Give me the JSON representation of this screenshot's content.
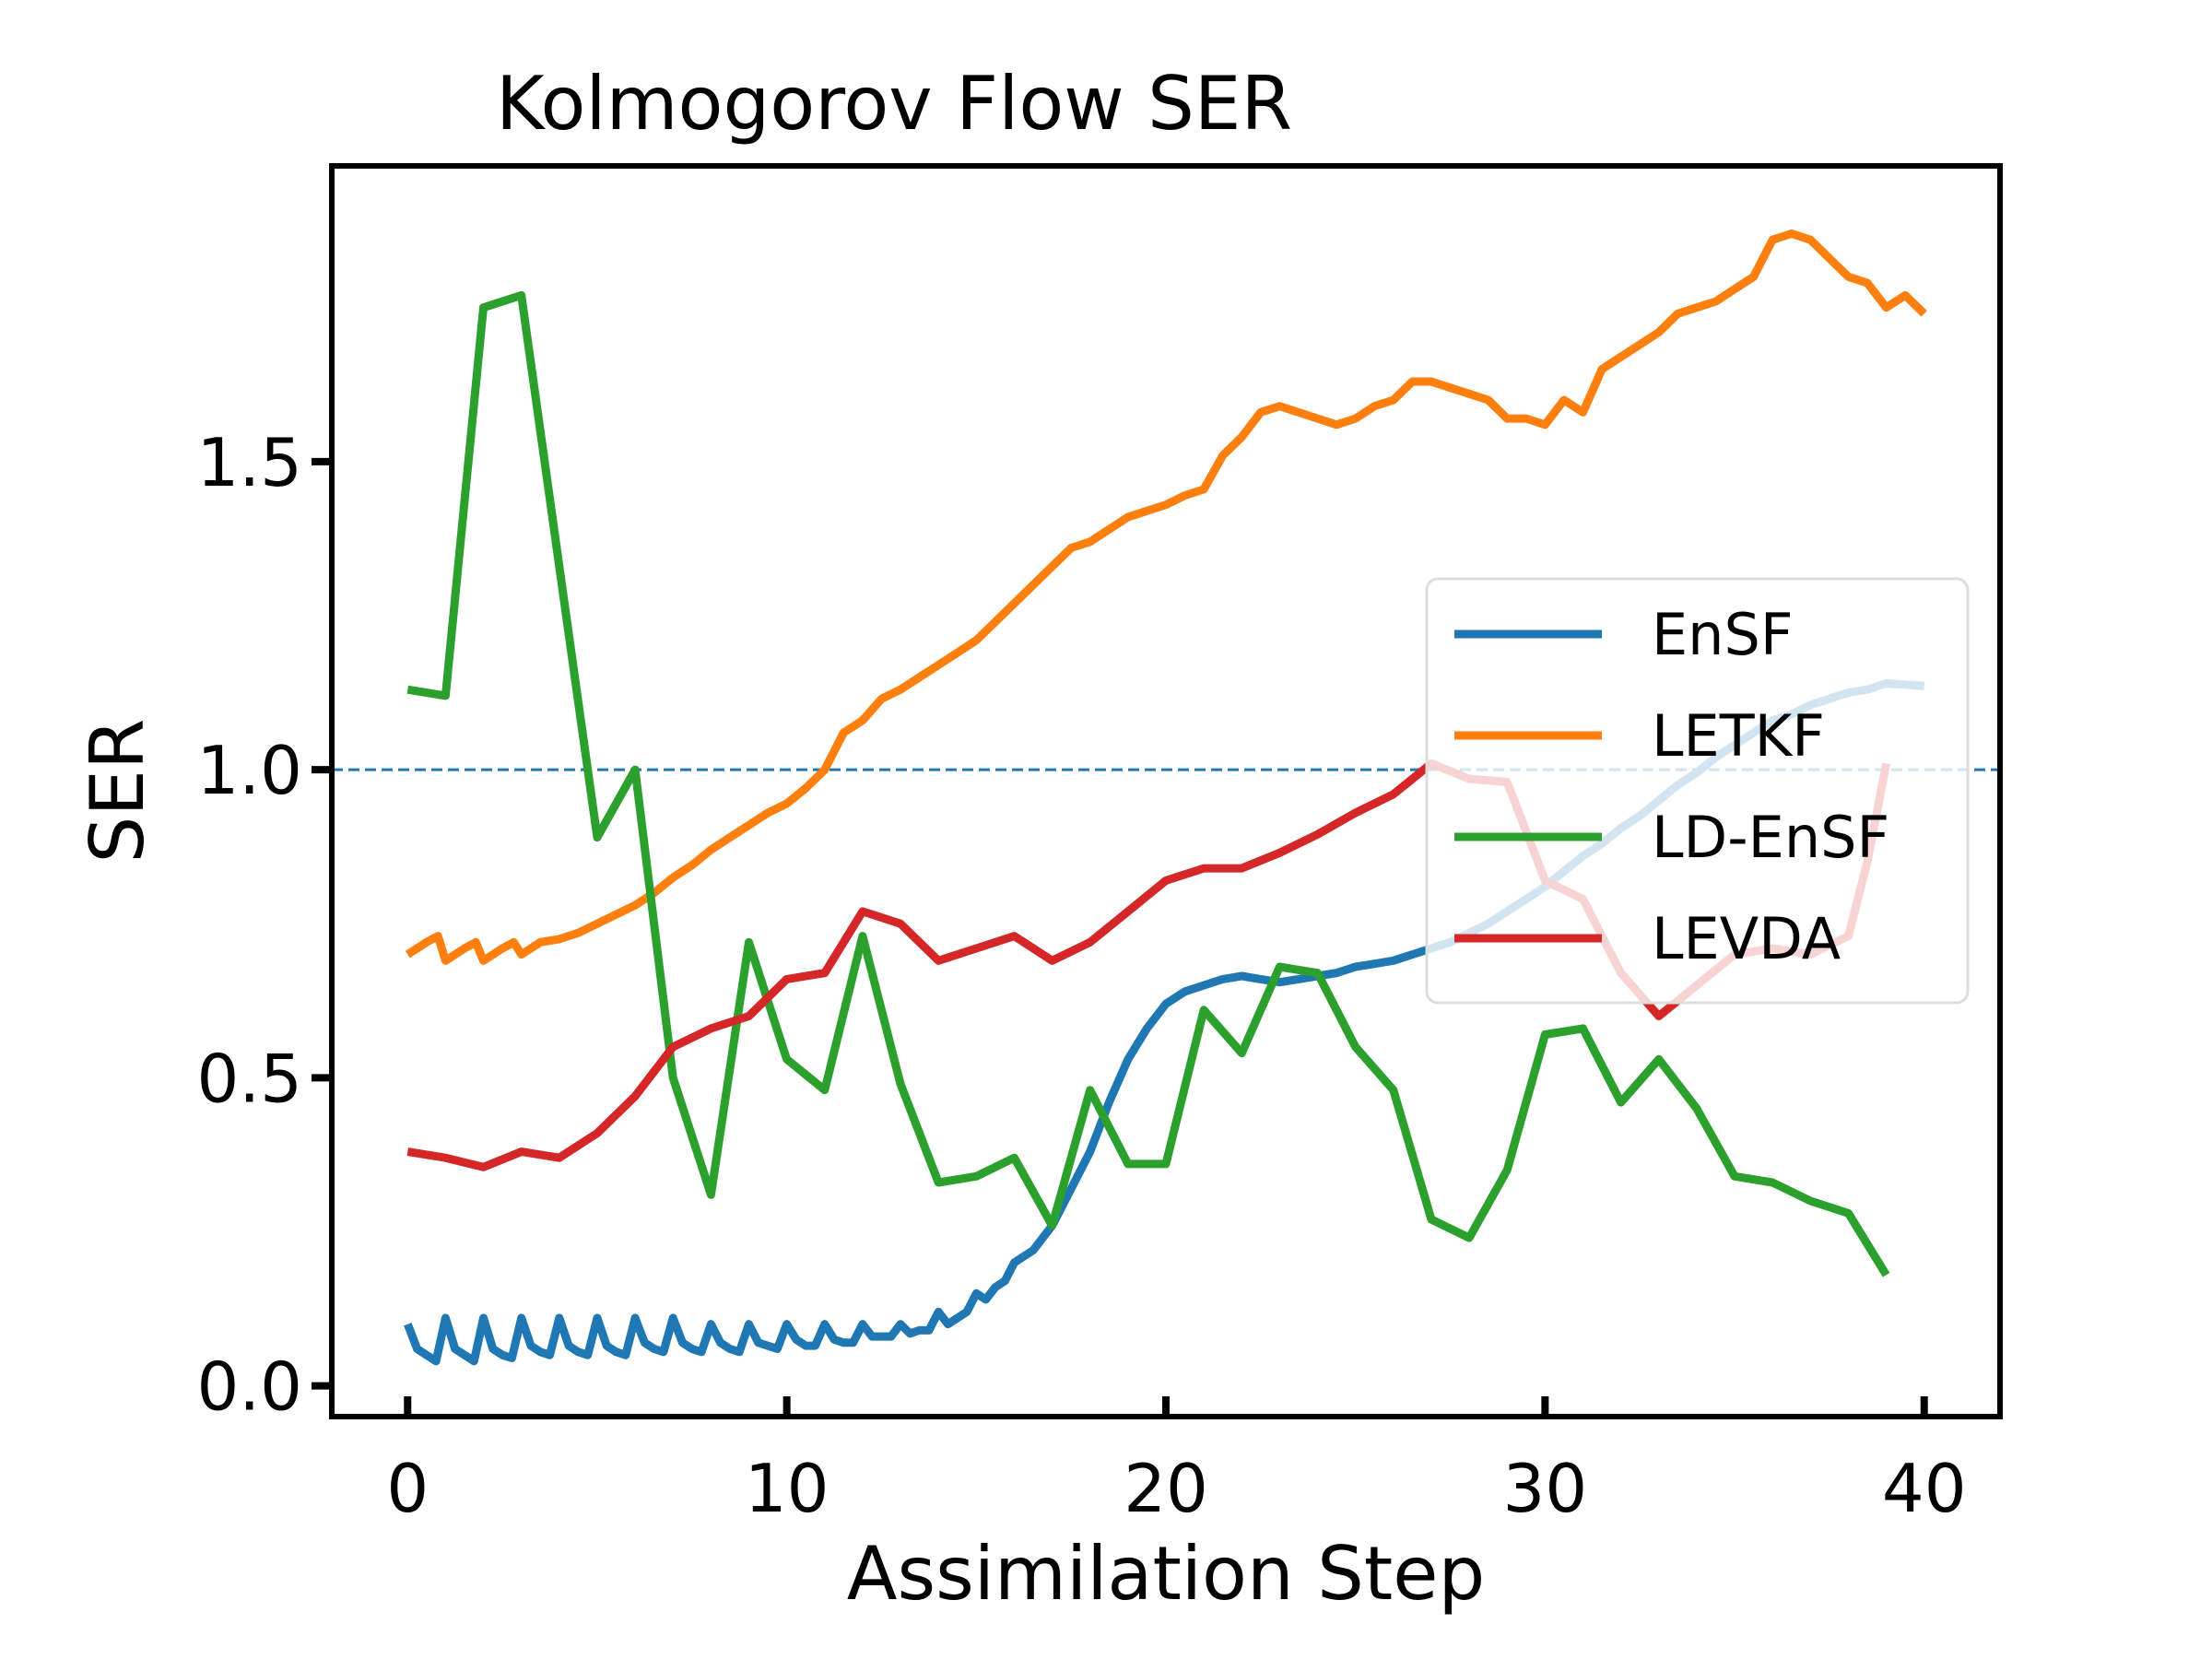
{
  "chart_data": {
    "type": "line",
    "title": "Kolmogorov Flow SER",
    "xlabel": "Assimilation Step",
    "ylabel": "SER",
    "xlim": [
      -2,
      42
    ],
    "ylim": [
      -0.05,
      1.98
    ],
    "xticks": [
      0,
      10,
      20,
      30,
      40
    ],
    "xtick_labels": [
      "0",
      "10",
      "20",
      "30",
      "40"
    ],
    "yticks": [
      0.0,
      0.5,
      1.0,
      1.5
    ],
    "ytick_labels": [
      "0.0",
      "0.5",
      "1.0",
      "1.5"
    ],
    "reference_line": {
      "y": 1.0,
      "style": "dashed",
      "color": "#1f77b4"
    },
    "legend_position": "center-right",
    "series": [
      {
        "name": "EnSF",
        "color": "#1f77b4",
        "x": [
          0,
          0.25,
          0.5,
          0.75,
          1,
          1.25,
          1.5,
          1.75,
          2,
          2.25,
          2.5,
          2.75,
          3,
          3.25,
          3.5,
          3.75,
          4,
          4.25,
          4.5,
          4.75,
          5,
          5.25,
          5.5,
          5.75,
          6,
          6.25,
          6.5,
          6.75,
          7,
          7.25,
          7.5,
          7.75,
          8,
          8.25,
          8.5,
          8.75,
          9,
          9.25,
          9.5,
          9.75,
          10,
          10.25,
          10.5,
          10.75,
          11,
          11.25,
          11.5,
          11.75,
          12,
          12.25,
          12.5,
          12.75,
          13,
          13.25,
          13.5,
          13.75,
          14,
          14.25,
          14.5,
          14.75,
          15,
          15.25,
          15.5,
          15.75,
          16,
          16.5,
          17,
          17.5,
          18,
          18.5,
          19,
          19.5,
          20,
          20.5,
          21,
          21.5,
          22,
          22.5,
          23,
          23.5,
          24,
          24.5,
          25,
          25.5,
          26,
          26.5,
          27,
          27.5,
          28,
          28.5,
          29,
          29.5,
          30,
          30.5,
          31,
          31.5,
          32,
          32.5,
          33,
          33.5,
          34,
          34.5,
          35,
          35.5,
          36,
          36.5,
          37,
          37.5,
          38,
          38.5,
          39,
          39.5,
          40
        ],
        "values": [
          0.1,
          0.06,
          0.05,
          0.04,
          0.11,
          0.06,
          0.05,
          0.04,
          0.11,
          0.06,
          0.05,
          0.045,
          0.11,
          0.065,
          0.055,
          0.05,
          0.11,
          0.065,
          0.055,
          0.05,
          0.11,
          0.065,
          0.055,
          0.05,
          0.11,
          0.07,
          0.06,
          0.055,
          0.11,
          0.07,
          0.06,
          0.055,
          0.1,
          0.07,
          0.06,
          0.055,
          0.1,
          0.07,
          0.065,
          0.06,
          0.1,
          0.075,
          0.065,
          0.065,
          0.1,
          0.075,
          0.07,
          0.07,
          0.1,
          0.08,
          0.08,
          0.08,
          0.1,
          0.085,
          0.09,
          0.09,
          0.12,
          0.1,
          0.11,
          0.12,
          0.15,
          0.14,
          0.16,
          0.17,
          0.2,
          0.22,
          0.26,
          0.32,
          0.38,
          0.46,
          0.53,
          0.58,
          0.62,
          0.64,
          0.65,
          0.66,
          0.665,
          0.66,
          0.655,
          0.66,
          0.665,
          0.67,
          0.68,
          0.685,
          0.69,
          0.7,
          0.71,
          0.72,
          0.735,
          0.75,
          0.77,
          0.79,
          0.81,
          0.835,
          0.86,
          0.88,
          0.905,
          0.925,
          0.95,
          0.975,
          0.995,
          1.02,
          1.04,
          1.06,
          1.08,
          1.09,
          1.105,
          1.115,
          1.125,
          1.13,
          1.14,
          1.138,
          1.136
        ]
      },
      {
        "name": "LETKF",
        "color": "#ff7f0e",
        "x": [
          0,
          0.5,
          0.8,
          1,
          1.5,
          1.8,
          2,
          2.5,
          2.8,
          3,
          3.5,
          4,
          4.5,
          5,
          5.5,
          6,
          6.5,
          7,
          7.5,
          8,
          8.5,
          9,
          9.5,
          10,
          10.5,
          11,
          11.5,
          12,
          12.5,
          13,
          13.5,
          14,
          14.5,
          15,
          15.5,
          16,
          16.5,
          17,
          17.5,
          18,
          18.5,
          19,
          19.5,
          20,
          20.5,
          21,
          21.5,
          22,
          22.5,
          23,
          23.5,
          24,
          24.5,
          25,
          25.5,
          26,
          26.5,
          27,
          27.5,
          28,
          28.5,
          29,
          29.5,
          30,
          30.5,
          31,
          31.5,
          32,
          32.5,
          33,
          33.5,
          34,
          34.5,
          35,
          35.5,
          36,
          36.5,
          37,
          37.5,
          38,
          38.5,
          39,
          39.5,
          40
        ],
        "values": [
          0.7,
          0.72,
          0.73,
          0.69,
          0.71,
          0.72,
          0.69,
          0.71,
          0.72,
          0.7,
          0.72,
          0.725,
          0.735,
          0.75,
          0.765,
          0.78,
          0.8,
          0.825,
          0.845,
          0.87,
          0.89,
          0.91,
          0.93,
          0.945,
          0.97,
          1.0,
          1.06,
          1.08,
          1.115,
          1.13,
          1.15,
          1.17,
          1.19,
          1.21,
          1.24,
          1.27,
          1.3,
          1.33,
          1.36,
          1.37,
          1.39,
          1.41,
          1.42,
          1.43,
          1.445,
          1.455,
          1.51,
          1.54,
          1.58,
          1.59,
          1.58,
          1.57,
          1.56,
          1.57,
          1.59,
          1.6,
          1.63,
          1.63,
          1.62,
          1.61,
          1.6,
          1.57,
          1.57,
          1.56,
          1.6,
          1.58,
          1.65,
          1.67,
          1.69,
          1.71,
          1.74,
          1.75,
          1.76,
          1.78,
          1.8,
          1.86,
          1.87,
          1.86,
          1.83,
          1.8,
          1.79,
          1.75,
          1.77,
          1.74
        ]
      },
      {
        "name": "LD-EnSF",
        "color": "#2ca02c",
        "x": [
          0,
          1,
          2,
          3,
          4,
          5,
          6,
          7,
          8,
          9,
          10,
          11,
          12,
          13,
          14,
          15,
          16,
          17,
          18,
          19,
          20,
          21,
          22,
          23,
          24,
          25,
          26,
          27,
          28,
          29,
          30,
          31,
          32,
          33,
          34,
          35,
          36,
          37,
          38,
          39
        ],
        "values": [
          1.13,
          1.12,
          1.75,
          1.77,
          1.33,
          0.89,
          1.0,
          0.5,
          0.31,
          0.72,
          0.53,
          0.48,
          0.73,
          0.49,
          0.33,
          0.34,
          0.37,
          0.26,
          0.48,
          0.36,
          0.36,
          0.61,
          0.54,
          0.68,
          0.67,
          0.55,
          0.48,
          0.27,
          0.24,
          0.35,
          0.57,
          0.58,
          0.46,
          0.53,
          0.45,
          0.34,
          0.33,
          0.3,
          0.28,
          0.18
        ]
      },
      {
        "name": "LEVDA",
        "color": "#d62728",
        "x": [
          0,
          1,
          2,
          3,
          4,
          5,
          6,
          7,
          8,
          9,
          10,
          11,
          12,
          13,
          14,
          15,
          16,
          17,
          18,
          19,
          20,
          21,
          22,
          23,
          24,
          25,
          26,
          27,
          28,
          29,
          30,
          31,
          32,
          33,
          34,
          35,
          36,
          37,
          38,
          38.5,
          39
        ],
        "values": [
          0.38,
          0.37,
          0.355,
          0.38,
          0.37,
          0.41,
          0.47,
          0.55,
          0.58,
          0.6,
          0.66,
          0.67,
          0.77,
          0.75,
          0.69,
          0.71,
          0.73,
          0.69,
          0.72,
          0.77,
          0.82,
          0.84,
          0.84,
          0.865,
          0.895,
          0.93,
          0.96,
          1.01,
          0.985,
          0.98,
          0.82,
          0.79,
          0.67,
          0.6,
          0.65,
          0.7,
          0.71,
          0.7,
          0.73,
          0.85,
          1.01
        ]
      }
    ]
  }
}
